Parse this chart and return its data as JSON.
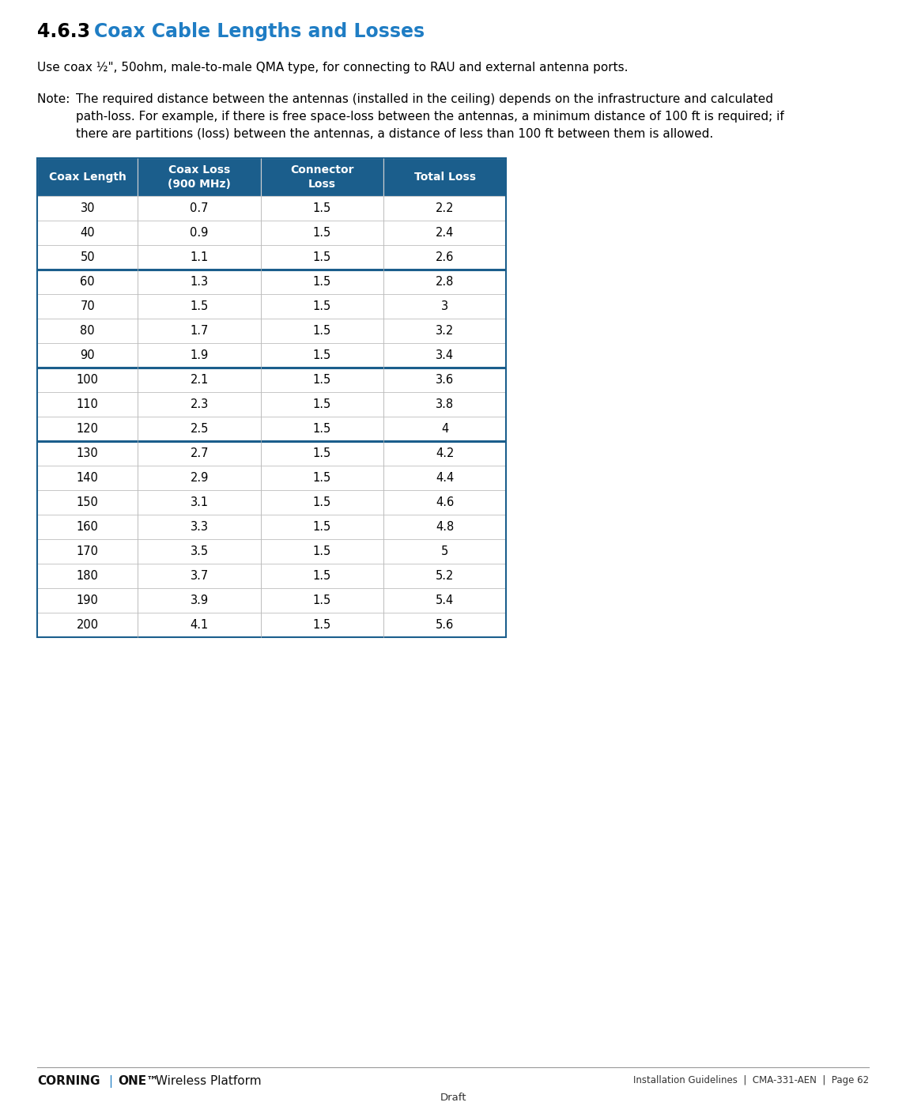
{
  "title_number": "4.6.3",
  "title_text": "Coax Cable Lengths and Losses",
  "title_color": "#1F7DC4",
  "title_number_color": "#000000",
  "body_text_1": "Use coax ½\", 50ohm, male-to-male QMA type, for connecting to RAU and external antenna ports.",
  "note_prefix": "Note: ",
  "note_line1": "The required distance between the antennas (installed in the ceiling) depends on the infrastructure and calculated",
  "note_line2": "path-loss. For example, if there is free space-loss between the antennas, a minimum distance of 100 ft is required; if",
  "note_line3": "there are partitions (loss) between the antennas, a distance of less than 100 ft between them is allowed.",
  "header_bg_color": "#1B5E8C",
  "header_text_color": "#FFFFFF",
  "row_border_color": "#BBBBBB",
  "thick_border_color": "#1B5E8C",
  "cell_text_color": "#000000",
  "col_headers": [
    "Coax Length",
    "Coax Loss\n(900 MHz)",
    "Connector\nLoss",
    "Total Loss"
  ],
  "table_data": [
    [
      "30",
      "0.7",
      "1.5",
      "2.2"
    ],
    [
      "40",
      "0.9",
      "1.5",
      "2.4"
    ],
    [
      "50",
      "1.1",
      "1.5",
      "2.6"
    ],
    [
      "60",
      "1.3",
      "1.5",
      "2.8"
    ],
    [
      "70",
      "1.5",
      "1.5",
      "3"
    ],
    [
      "80",
      "1.7",
      "1.5",
      "3.2"
    ],
    [
      "90",
      "1.9",
      "1.5",
      "3.4"
    ],
    [
      "100",
      "2.1",
      "1.5",
      "3.6"
    ],
    [
      "110",
      "2.3",
      "1.5",
      "3.8"
    ],
    [
      "120",
      "2.5",
      "1.5",
      "4"
    ],
    [
      "130",
      "2.7",
      "1.5",
      "4.2"
    ],
    [
      "140",
      "2.9",
      "1.5",
      "4.4"
    ],
    [
      "150",
      "3.1",
      "1.5",
      "4.6"
    ],
    [
      "160",
      "3.3",
      "1.5",
      "4.8"
    ],
    [
      "170",
      "3.5",
      "1.5",
      "5"
    ],
    [
      "180",
      "3.7",
      "1.5",
      "5.2"
    ],
    [
      "190",
      "3.9",
      "1.5",
      "5.4"
    ],
    [
      "200",
      "4.1",
      "1.5",
      "5.6"
    ]
  ],
  "thick_row_borders_after": [
    2,
    6,
    9
  ],
  "footer_corning": "CORNING",
  "footer_one": "ONE",
  "footer_tm": "™",
  "footer_wireless": " Wireless Platform",
  "footer_right": "Installation Guidelines  |  CMA-331-AEN  |  Page 62",
  "footer_center": "Draft",
  "background_color": "#FFFFFF",
  "page_width": 11.46,
  "page_height": 13.99
}
